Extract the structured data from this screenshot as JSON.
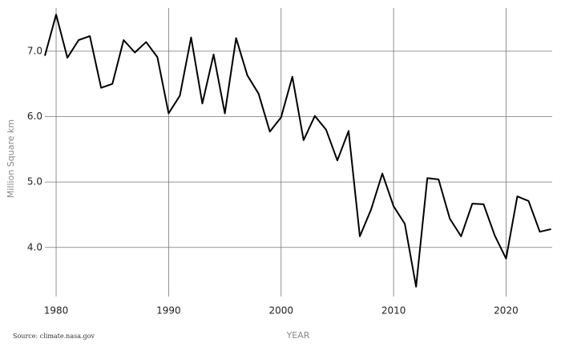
{
  "chart_data": {
    "type": "line",
    "x": [
      1979,
      1980,
      1981,
      1982,
      1983,
      1984,
      1985,
      1986,
      1987,
      1988,
      1989,
      1990,
      1991,
      1992,
      1993,
      1994,
      1995,
      1996,
      1997,
      1998,
      1999,
      2000,
      2001,
      2002,
      2003,
      2004,
      2005,
      2006,
      2007,
      2008,
      2009,
      2010,
      2011,
      2012,
      2013,
      2014,
      2015,
      2016,
      2017,
      2018,
      2019,
      2020,
      2021,
      2022,
      2023,
      2024
    ],
    "series": [
      {
        "color": "#000000",
        "values": [
          6.93,
          7.56,
          6.9,
          7.17,
          7.23,
          6.44,
          6.5,
          7.17,
          6.98,
          7.14,
          6.91,
          6.05,
          6.32,
          7.21,
          6.2,
          6.95,
          6.05,
          7.2,
          6.63,
          6.35,
          5.77,
          5.99,
          6.61,
          5.64,
          6.01,
          5.8,
          5.33,
          5.78,
          4.17,
          4.58,
          5.13,
          4.63,
          4.36,
          3.4,
          5.06,
          5.04,
          4.44,
          4.17,
          4.67,
          4.66,
          4.18,
          3.83,
          4.78,
          4.71,
          4.24,
          4.28
        ]
      }
    ],
    "xlim": [
      1979,
      2024.1
    ],
    "xticks": [
      1980,
      1990,
      2000,
      2010,
      2020
    ],
    "ylim": [
      3.25,
      7.66
    ],
    "yticks": [
      {
        "value": 4,
        "label": "4.0"
      },
      {
        "value": 5,
        "label": "5.0"
      },
      {
        "value": 6,
        "label": "6.0"
      },
      {
        "value": 7,
        "label": "7.0"
      }
    ],
    "xlabel": "YEAR",
    "ylabel": "Million Square km",
    "source": "Source: climate.nasa.gov",
    "grid": true
  }
}
